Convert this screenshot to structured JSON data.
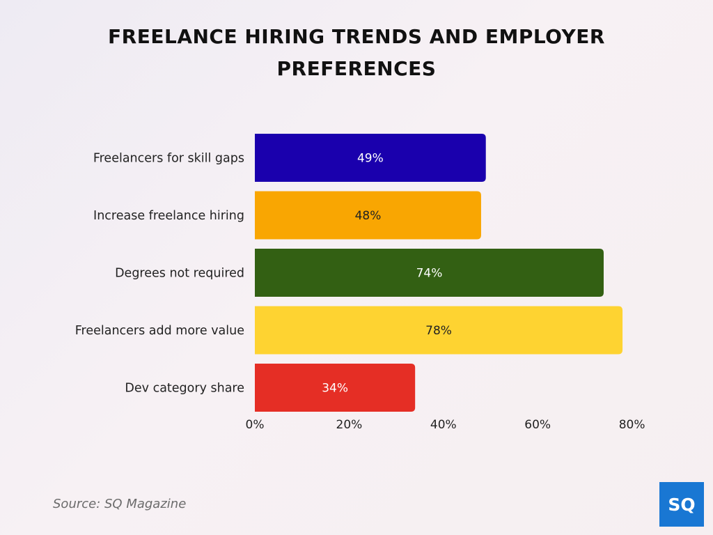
{
  "title": "FREELANCE HIRING TRENDS AND EMPLOYER PREFERENCES",
  "source": "Source: SQ Magazine",
  "logo_text": "SQ",
  "chart_data": {
    "type": "bar",
    "orientation": "horizontal",
    "categories": [
      "Freelancers for skill gaps",
      "Increase freelance hiring",
      "Degrees not required",
      "Freelancers add more value",
      "Dev category share"
    ],
    "values": [
      49,
      48,
      74,
      78,
      34
    ],
    "value_labels": [
      "49%",
      "48%",
      "74%",
      "78%",
      "34%"
    ],
    "colors": [
      "#1a00ad",
      "#f9a602",
      "#336013",
      "#fed331",
      "#e52e25"
    ],
    "label_colors": [
      "#ffffff",
      "#222222",
      "#ffffff",
      "#222222",
      "#ffffff"
    ],
    "xticks": [
      0,
      20,
      40,
      60,
      80
    ],
    "xtick_labels": [
      "0%",
      "20%",
      "40%",
      "60%",
      "80%"
    ],
    "xlim": [
      0,
      80
    ],
    "grid": false
  }
}
